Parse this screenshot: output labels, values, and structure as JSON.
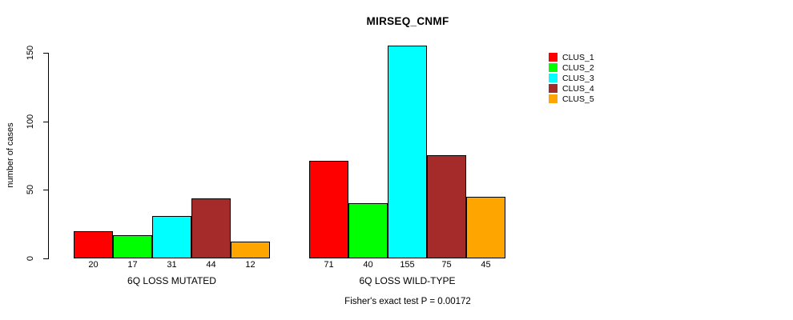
{
  "title": "MIRSEQ_CNMF",
  "y_axis": {
    "label": "number of cases",
    "ticks": [
      0,
      50,
      100,
      150
    ]
  },
  "footer": "Fisher's exact test P = 0.00172",
  "chart_data": {
    "type": "bar",
    "title": "MIRSEQ_CNMF",
    "xlabel": "",
    "ylabel": "number of cases",
    "ylim": [
      0,
      160
    ],
    "yticks": [
      0,
      50,
      100,
      150
    ],
    "grid": false,
    "legend_position": "top-right",
    "bar_labels_shown": true,
    "categories": [
      "6Q LOSS MUTATED",
      "6Q LOSS WILD-TYPE"
    ],
    "series": [
      {
        "name": "CLUS_1",
        "color": "#FF0000",
        "values": [
          20,
          71
        ]
      },
      {
        "name": "CLUS_2",
        "color": "#00FF00",
        "values": [
          17,
          40
        ]
      },
      {
        "name": "CLUS_3",
        "color": "#00FFFF",
        "values": [
          31,
          155
        ]
      },
      {
        "name": "CLUS_4",
        "color": "#A52A2A",
        "values": [
          44,
          75
        ]
      },
      {
        "name": "CLUS_5",
        "color": "#FFA500",
        "values": [
          12,
          45
        ]
      }
    ],
    "annotation": "Fisher's exact test P = 0.00172"
  }
}
